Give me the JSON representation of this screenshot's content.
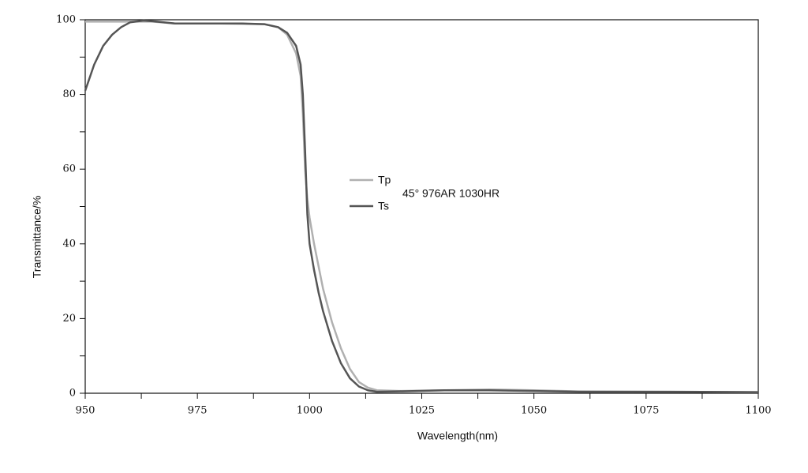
{
  "chart_data": {
    "type": "line",
    "xlabel": "Wavelength(nm)",
    "ylabel": "Transmittance/%",
    "annotation": "45° 976AR 1030HR",
    "xlim": [
      950,
      1100
    ],
    "xticks": [
      950,
      975,
      1000,
      1025,
      1050,
      1075,
      1100
    ],
    "xminor_ticks": [
      962.5,
      987.5,
      1012.5,
      1037.5,
      1062.5,
      1087.5
    ],
    "ylim": [
      0,
      100
    ],
    "yticks": [
      0,
      20,
      40,
      60,
      80,
      100
    ],
    "yminor_ticks": [
      10,
      30,
      50,
      70,
      90
    ],
    "grid": false,
    "legend": "center",
    "series": [
      {
        "name": "Tp",
        "color": "#b0b0b0",
        "x": [
          950,
          960,
          965,
          970,
          980,
          990,
          993,
          995,
          997,
          998,
          998.5,
          999,
          999.5,
          1000,
          1001,
          1002,
          1003,
          1005,
          1007,
          1009,
          1011,
          1013,
          1015,
          1020,
          1030,
          1040,
          1050,
          1060,
          1080,
          1100
        ],
        "values": [
          99.5,
          99.5,
          99.5,
          99,
          99,
          98.8,
          98,
          96,
          91,
          85,
          75,
          60,
          52,
          47,
          40,
          34,
          28,
          19,
          12,
          6.5,
          3,
          1.5,
          0.8,
          0.6,
          0.8,
          1,
          0.8,
          0.5,
          0.4,
          0.3
        ]
      },
      {
        "name": "Ts",
        "color": "#555555",
        "x": [
          950,
          952,
          954,
          956,
          958,
          960,
          963,
          966,
          970,
          975,
          980,
          985,
          990,
          993,
          995,
          997,
          998,
          998.5,
          999,
          999.5,
          1000,
          1001,
          1002,
          1003,
          1005,
          1007,
          1009,
          1011,
          1013,
          1015,
          1020,
          1030,
          1040,
          1050,
          1060,
          1080,
          1100
        ],
        "values": [
          81,
          88,
          93,
          96,
          98,
          99.3,
          99.8,
          99.5,
          99,
          99,
          99,
          99,
          98.8,
          98,
          96.5,
          93,
          88,
          80,
          65,
          48,
          40,
          33,
          27,
          22,
          14,
          8,
          4,
          1.8,
          0.8,
          0.4,
          0.5,
          0.8,
          0.8,
          0.6,
          0.4,
          0.4,
          0.3
        ]
      }
    ]
  }
}
